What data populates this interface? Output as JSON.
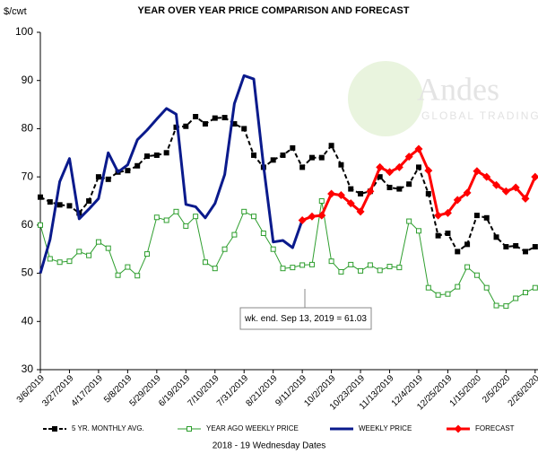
{
  "chart_data": {
    "type": "line",
    "title": "YEAR OVER YEAR PRICE COMPARISON AND FORECAST",
    "y_label": "$/cwt",
    "x_label": "2018 - 19 Wednesday Dates",
    "watermark": "Andes",
    "watermark_sub": "GLOBAL TRADING",
    "annotation": "wk. end. Sep 13, 2019  = 61.03",
    "categories": [
      "3/6/2019",
      null,
      null,
      "3/27/2019",
      null,
      null,
      "4/17/2019",
      null,
      null,
      "5/8/2019",
      null,
      null,
      "5/29/2019",
      null,
      null,
      "6/19/2019",
      null,
      null,
      "7/10/2019",
      null,
      null,
      "7/31/2019",
      null,
      null,
      "8/21/2019",
      null,
      null,
      "9/11/2019",
      null,
      null,
      "10/2/2019",
      null,
      null,
      "10/23/2019",
      null,
      null,
      "11/13/2019",
      null,
      null,
      "12/4/2019",
      null,
      null,
      "12/25/2019",
      null,
      null,
      "1/15/2020",
      null,
      null,
      "2/5/2020",
      null,
      null,
      "2/26/2020"
    ],
    "ylim": [
      30,
      100
    ],
    "yticks": [
      30,
      40,
      50,
      60,
      70,
      80,
      90,
      100
    ],
    "grid": false,
    "series": [
      {
        "name": "5 YR. MONTHLY AVG.",
        "color": "#000000",
        "dash": true,
        "marker": "square",
        "width": 2,
        "values": [
          65.8,
          64.8,
          64.2,
          64.0,
          62.5,
          65,
          70,
          69.5,
          71,
          71.3,
          72.3,
          74.3,
          74.5,
          75,
          80.3,
          80.5,
          82.5,
          81,
          82.2,
          82.3,
          81,
          80,
          74.5,
          72,
          73.5,
          74.5,
          76,
          72,
          74,
          74,
          76.5,
          72.5,
          67.5,
          66.5,
          67,
          70,
          67.8,
          67.5,
          68.5,
          72,
          66.5,
          57.8,
          58.3,
          54.5,
          56,
          62,
          61.5,
          57.5,
          55.5,
          55.7,
          54.5,
          55.5
        ]
      },
      {
        "name": "YEAR AGO WEEKLY PRICE",
        "color": "#2e9e2e",
        "dash": false,
        "marker": "hollow-square",
        "width": 1,
        "values": [
          60,
          53,
          52.3,
          52.5,
          54.5,
          53.7,
          56.5,
          55.2,
          49.6,
          51.3,
          49.5,
          54,
          61.6,
          61,
          62.8,
          59.8,
          61.8,
          52.3,
          51,
          55,
          58,
          62.8,
          61.8,
          58.3,
          55,
          51,
          51.2,
          51.7,
          51.8,
          65,
          52.5,
          50.3,
          51.8,
          50.5,
          51.7,
          50.6,
          51.4,
          51.2,
          60.8,
          58.8,
          47,
          45.5,
          45.7,
          47.2,
          51.3,
          49.6,
          47,
          43.3,
          43.2,
          44.8,
          46,
          47
        ]
      },
      {
        "name": "WEEKLY PRICE",
        "color": "#0a1a8c",
        "dash": false,
        "marker": "none",
        "width": 3,
        "values": [
          50,
          57,
          69,
          73.8,
          61.3,
          63.3,
          65.5,
          75,
          71,
          72.5,
          77.7,
          79.7,
          82,
          84.2,
          83,
          64.3,
          63.8,
          61.5,
          64.5,
          70.5,
          85.2,
          91,
          90.3,
          72.3,
          56.5,
          56.8,
          55.3,
          61.03,
          null,
          null,
          null,
          null,
          null,
          null,
          null,
          null,
          null,
          null,
          null,
          null,
          null,
          null,
          null,
          null,
          null,
          null,
          null,
          null,
          null,
          null,
          null,
          null
        ]
      },
      {
        "name": "FORECAST",
        "color": "#ff0000",
        "dash": false,
        "marker": "diamond",
        "width": 3,
        "values": [
          null,
          null,
          null,
          null,
          null,
          null,
          null,
          null,
          null,
          null,
          null,
          null,
          null,
          null,
          null,
          null,
          null,
          null,
          null,
          null,
          null,
          null,
          null,
          null,
          null,
          null,
          null,
          61,
          61.8,
          62,
          66.5,
          66.2,
          64.5,
          62.8,
          67,
          72,
          71,
          72,
          74.2,
          75.8,
          71.3,
          62,
          62.5,
          65.2,
          66.7,
          71.2,
          70,
          68.3,
          67,
          67.8,
          65.5,
          70
        ]
      }
    ]
  }
}
